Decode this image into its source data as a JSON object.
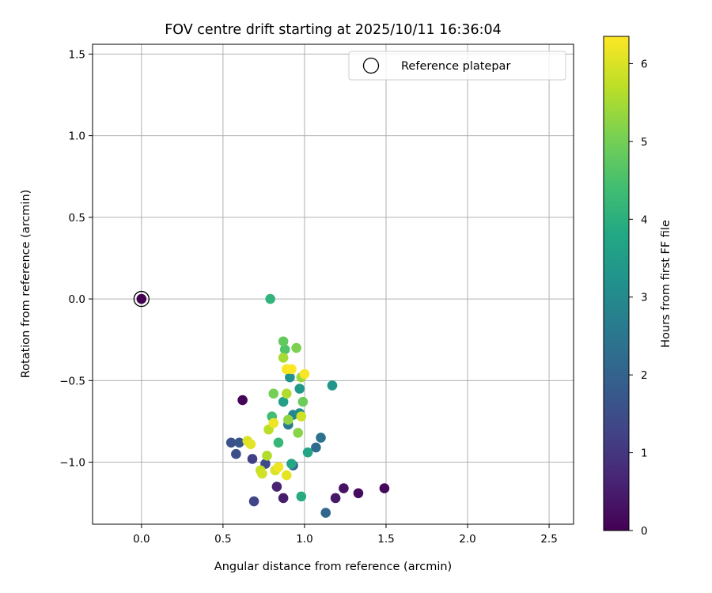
{
  "chart_data": {
    "type": "scatter",
    "title": "FOV centre drift starting at 2025/10/11 16:36:04",
    "xlabel": "Angular distance from reference (arcmin)",
    "ylabel": "Rotation from reference (arcmin)",
    "xlim": [
      -0.3,
      2.65
    ],
    "ylim": [
      -1.38,
      1.56
    ],
    "xticks": [
      0.0,
      0.5,
      1.0,
      1.5,
      2.0,
      2.5
    ],
    "xtick_labels": [
      "0.0",
      "0.5",
      "1.0",
      "1.5",
      "2.0",
      "2.5"
    ],
    "yticks": [
      -1.0,
      -0.5,
      0.0,
      0.5,
      1.0,
      1.5
    ],
    "ytick_labels": [
      "−1.0",
      "−0.5",
      "0.0",
      "0.5",
      "1.0",
      "1.5"
    ],
    "grid": true,
    "legend": {
      "position": "top-right",
      "label": "Reference platepar",
      "marker": "open-circle"
    },
    "colorbar": {
      "label": "Hours from first FF file",
      "range": [
        0,
        6.35
      ],
      "ticks": [
        0,
        1,
        2,
        3,
        4,
        5,
        6
      ],
      "tick_labels": [
        "0",
        "1",
        "2",
        "3",
        "4",
        "5",
        "6"
      ],
      "colormap": "viridis"
    },
    "reference_point": {
      "x": 0.0,
      "y": 0.0
    },
    "points": [
      {
        "x": 0.0,
        "y": 0.0,
        "c": 0.0
      },
      {
        "x": 0.62,
        "y": -0.62,
        "c": 0.05
      },
      {
        "x": 1.49,
        "y": -1.16,
        "c": 0.1
      },
      {
        "x": 1.33,
        "y": -1.19,
        "c": 0.2
      },
      {
        "x": 1.24,
        "y": -1.16,
        "c": 0.3
      },
      {
        "x": 1.19,
        "y": -1.22,
        "c": 0.4
      },
      {
        "x": 0.87,
        "y": -1.22,
        "c": 0.5
      },
      {
        "x": 0.83,
        "y": -1.15,
        "c": 0.6
      },
      {
        "x": 0.69,
        "y": -1.24,
        "c": 1.3
      },
      {
        "x": 0.58,
        "y": -0.95,
        "c": 1.5
      },
      {
        "x": 0.55,
        "y": -0.88,
        "c": 1.6
      },
      {
        "x": 0.6,
        "y": -0.88,
        "c": 1.7
      },
      {
        "x": 0.68,
        "y": -0.98,
        "c": 1.2
      },
      {
        "x": 0.76,
        "y": -1.01,
        "c": 1.4
      },
      {
        "x": 0.93,
        "y": -1.02,
        "c": 1.9
      },
      {
        "x": 1.13,
        "y": -1.31,
        "c": 2.1
      },
      {
        "x": 1.07,
        "y": -0.91,
        "c": 2.2
      },
      {
        "x": 1.1,
        "y": -0.85,
        "c": 2.4
      },
      {
        "x": 0.9,
        "y": -0.77,
        "c": 2.6
      },
      {
        "x": 0.93,
        "y": -0.71,
        "c": 2.9
      },
      {
        "x": 0.97,
        "y": -0.7,
        "c": 3.1
      },
      {
        "x": 0.91,
        "y": -0.48,
        "c": 3.2
      },
      {
        "x": 0.97,
        "y": -0.55,
        "c": 3.4
      },
      {
        "x": 1.17,
        "y": -0.53,
        "c": 3.3
      },
      {
        "x": 0.87,
        "y": -0.63,
        "c": 3.6
      },
      {
        "x": 1.02,
        "y": -0.94,
        "c": 3.7
      },
      {
        "x": 0.92,
        "y": -1.01,
        "c": 3.8
      },
      {
        "x": 0.98,
        "y": -1.21,
        "c": 3.9
      },
      {
        "x": 0.79,
        "y": 0.0,
        "c": 4.1
      },
      {
        "x": 0.84,
        "y": -0.88,
        "c": 4.2
      },
      {
        "x": 0.8,
        "y": -0.72,
        "c": 4.4
      },
      {
        "x": 0.88,
        "y": -0.31,
        "c": 4.6
      },
      {
        "x": 0.87,
        "y": -0.26,
        "c": 4.8
      },
      {
        "x": 0.99,
        "y": -0.63,
        "c": 4.9
      },
      {
        "x": 0.81,
        "y": -0.58,
        "c": 5.0
      },
      {
        "x": 0.95,
        "y": -0.3,
        "c": 5.1
      },
      {
        "x": 0.96,
        "y": -0.82,
        "c": 5.2
      },
      {
        "x": 0.9,
        "y": -0.74,
        "c": 5.3
      },
      {
        "x": 0.98,
        "y": -0.48,
        "c": 5.4
      },
      {
        "x": 0.87,
        "y": -0.36,
        "c": 5.5
      },
      {
        "x": 0.89,
        "y": -0.58,
        "c": 5.6
      },
      {
        "x": 0.78,
        "y": -0.8,
        "c": 5.7
      },
      {
        "x": 0.77,
        "y": -0.96,
        "c": 5.6
      },
      {
        "x": 0.73,
        "y": -1.05,
        "c": 5.8
      },
      {
        "x": 0.74,
        "y": -1.07,
        "c": 5.9
      },
      {
        "x": 0.82,
        "y": -1.05,
        "c": 6.0
      },
      {
        "x": 0.65,
        "y": -0.87,
        "c": 6.0
      },
      {
        "x": 0.67,
        "y": -0.89,
        "c": 6.1
      },
      {
        "x": 0.98,
        "y": -0.72,
        "c": 5.9
      },
      {
        "x": 0.89,
        "y": -1.08,
        "c": 6.1
      },
      {
        "x": 0.84,
        "y": -1.03,
        "c": 6.2
      },
      {
        "x": 0.81,
        "y": -0.76,
        "c": 6.2
      },
      {
        "x": 1.0,
        "y": -0.46,
        "c": 6.3
      },
      {
        "x": 0.89,
        "y": -0.43,
        "c": 6.3
      },
      {
        "x": 0.92,
        "y": -0.43,
        "c": 6.35
      }
    ]
  }
}
